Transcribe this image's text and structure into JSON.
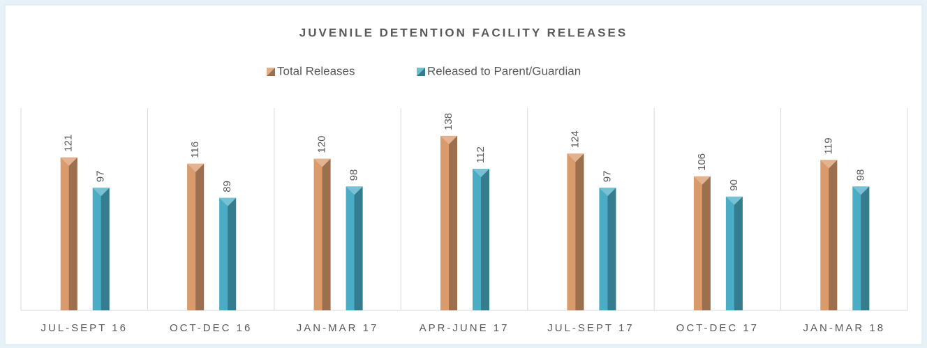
{
  "chart_data": {
    "type": "bar",
    "title": "JUVENILE DETENTION FACILITY RELEASES",
    "categories": [
      "JUL-SEPT 16",
      "OCT-DEC 16",
      "JAN-MAR 17",
      "APR-JUNE 17",
      "JUL-SEPT 17",
      "OCT-DEC 17",
      "JAN-MAR 18"
    ],
    "series": [
      {
        "name": "Total Releases",
        "color": "#d99a6c",
        "values": [
          121,
          116,
          120,
          138,
          124,
          106,
          119
        ]
      },
      {
        "name": "Released to Parent/Guardian",
        "color": "#4bacc6",
        "values": [
          97,
          89,
          98,
          112,
          97,
          90,
          98
        ]
      }
    ],
    "ylim": [
      0,
      160
    ]
  }
}
